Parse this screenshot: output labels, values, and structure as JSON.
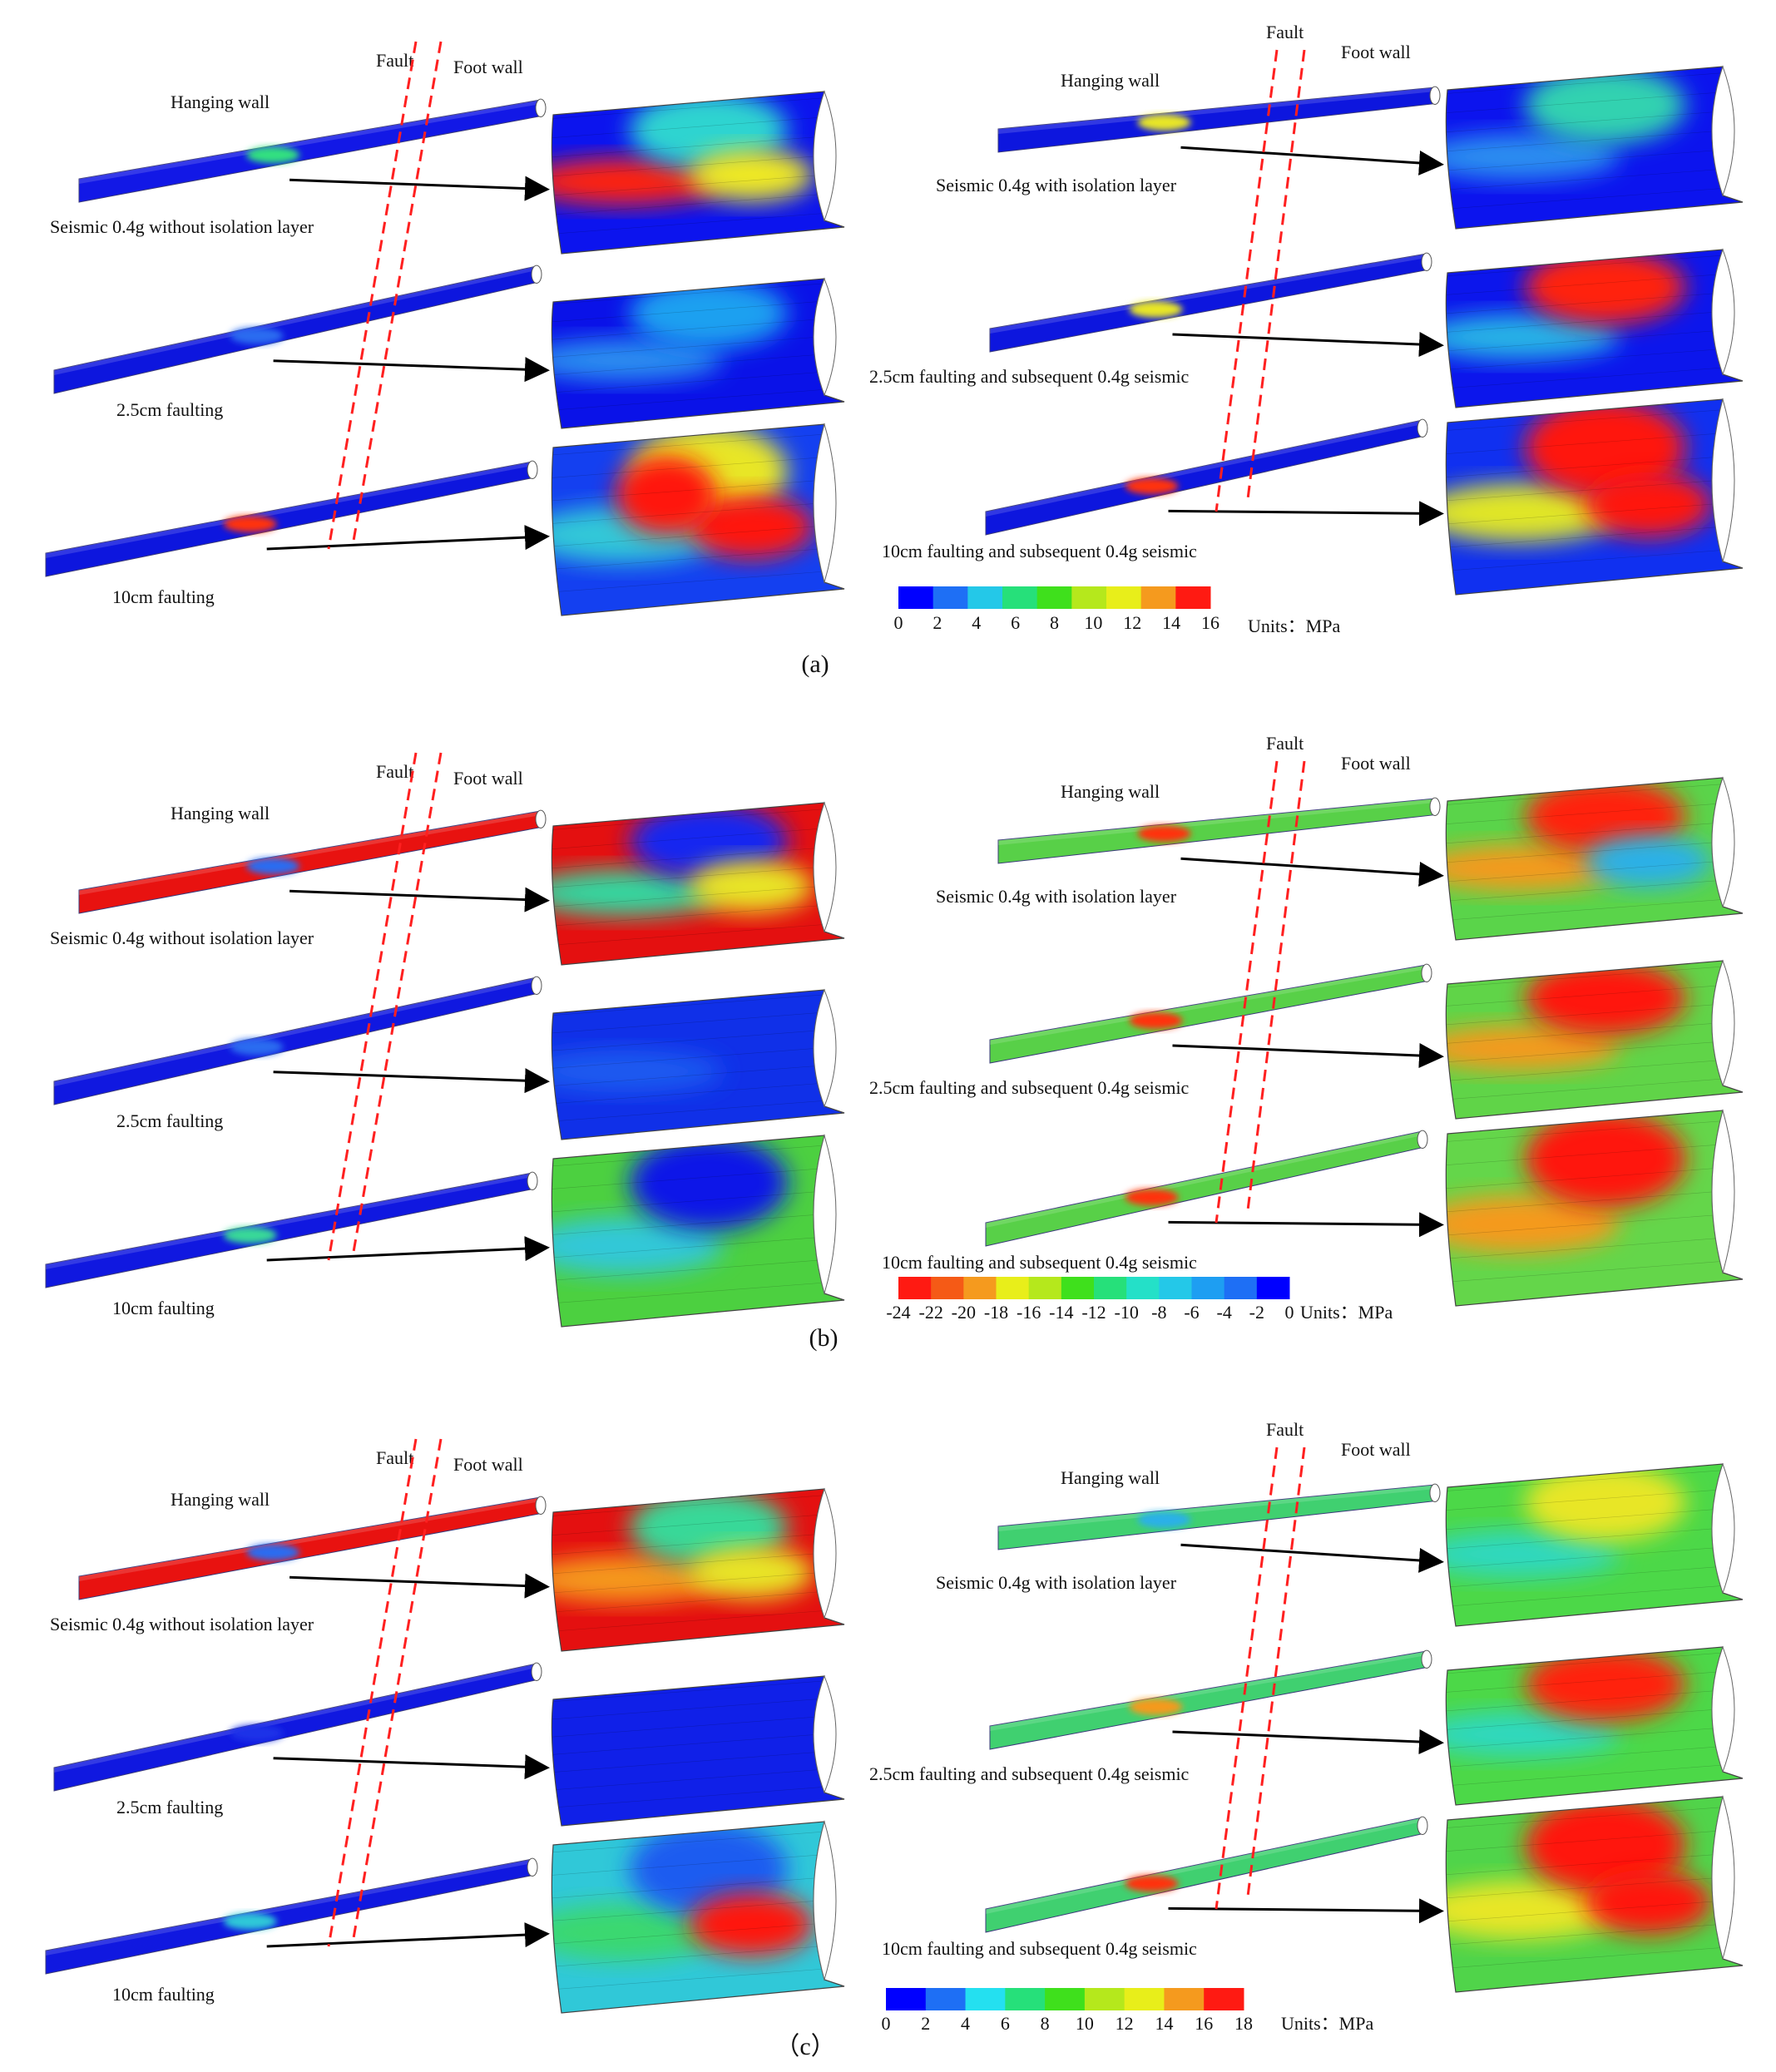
{
  "figure": {
    "panels": [
      {
        "id": "a",
        "caption": "(a)",
        "units": "Units：MPa",
        "colorbar": {
          "colors": [
            "#0000ff",
            "#1e6ff5",
            "#24c8e8",
            "#26e07a",
            "#3fe01c",
            "#b5e81c",
            "#e8ee1a",
            "#f59a1e",
            "#ff1a12"
          ],
          "ticks": [
            "0",
            "2",
            "4",
            "6",
            "8",
            "10",
            "12",
            "14",
            "16"
          ]
        },
        "left": {
          "hanging_wall": "Hanging wall",
          "fault": "Fault",
          "foot_wall": "Foot wall",
          "cases": [
            {
              "label": "Seismic 0.4g without isolation layer",
              "tube": "#1218e6",
              "tube_hot": "#30e080",
              "zoom_base": "#0c14ee",
              "blobs": [
                {
                  "c": "#ff2010"
                },
                {
                  "c": "#2ed4d0"
                },
                {
                  "c": "#f0ea20"
                }
              ]
            },
            {
              "label": "2.5cm faulting",
              "tube": "#0d16de",
              "tube_hot": "#2a6cf0",
              "zoom_base": "#0a12e8",
              "blobs": [
                {
                  "c": "#2a8ef0"
                },
                {
                  "c": "#1aa0f0"
                }
              ]
            },
            {
              "label": "10cm faulting",
              "tube": "#0d16de",
              "tube_hot": "#ff3010",
              "zoom_base": "#1440f0",
              "blobs": [
                {
                  "c": "#30c8d8"
                },
                {
                  "c": "#e8e628"
                },
                {
                  "c": "#ff1810"
                },
                {
                  "c": "#ff1810"
                }
              ]
            }
          ]
        },
        "right": {
          "hanging_wall": "Hanging wall",
          "fault": "Fault",
          "foot_wall": "Foot wall",
          "cases": [
            {
              "label": "Seismic 0.4g with isolation layer",
              "tube": "#0d16de",
              "tube_hot": "#e8e628",
              "zoom_base": "#0c14ee",
              "blobs": [
                {
                  "c": "#2a8ef0"
                },
                {
                  "c": "#30d2b0"
                }
              ]
            },
            {
              "label": "2.5cm faulting and subsequent 0.4g seismic",
              "tube": "#0d16de",
              "tube_hot": "#e8e628",
              "zoom_base": "#0c16ec",
              "blobs": [
                {
                  "c": "#28b4e6"
                },
                {
                  "c": "#ff2010"
                }
              ]
            },
            {
              "label": "10cm faulting and subsequent 0.4g seismic",
              "tube": "#0d16de",
              "tube_hot": "#ff3010",
              "zoom_base": "#1030f0",
              "blobs": [
                {
                  "c": "#e0e628"
                },
                {
                  "c": "#ff1810"
                },
                {
                  "c": "#ff1810"
                }
              ]
            }
          ]
        }
      },
      {
        "id": "b",
        "caption": "(b)",
        "units": "Units：MPa",
        "colorbar": {
          "colors": [
            "#ff1a12",
            "#f55a16",
            "#f59a1e",
            "#e8ee1a",
            "#b5e81c",
            "#3fe01c",
            "#26e07a",
            "#24e0c8",
            "#24c8e8",
            "#1e9ef2",
            "#1e6ff5",
            "#0000ff"
          ],
          "ticks": [
            "-24",
            "-22",
            "-20",
            "-18",
            "-16",
            "-14",
            "-12",
            "-10",
            "-8",
            "-6",
            "-4",
            "-2",
            "0"
          ]
        },
        "left": {
          "hanging_wall": "Hanging wall",
          "fault": "Fault",
          "foot_wall": "Foot wall",
          "cases": [
            {
              "label": "Seismic 0.4g without isolation layer",
              "tube": "#e81210",
              "tube_hot": "#2a6cf0",
              "zoom_base": "#e41010",
              "blobs": [
                {
                  "c": "#30d8a0"
                },
                {
                  "c": "#1428f0"
                },
                {
                  "c": "#e8e628"
                }
              ]
            },
            {
              "label": "2.5cm faulting",
              "tube": "#1018e0",
              "tube_hot": "#2a6cf0",
              "zoom_base": "#1030e8",
              "blobs": [
                {
                  "c": "#1a5cf0"
                }
              ]
            },
            {
              "label": "10cm faulting",
              "tube": "#1018e0",
              "tube_hot": "#38d898",
              "zoom_base": "#4cd040",
              "blobs": [
                {
                  "c": "#30c8d8"
                },
                {
                  "c": "#0d18e8"
                }
              ]
            }
          ]
        },
        "right": {
          "hanging_wall": "Hanging wall",
          "fault": "Fault",
          "foot_wall": "Foot wall",
          "cases": [
            {
              "label": "Seismic 0.4g with isolation layer",
              "tube": "#58d048",
              "tube_hot": "#ff3010",
              "zoom_base": "#5ad44a",
              "blobs": [
                {
                  "c": "#f59a1e"
                },
                {
                  "c": "#ff2010"
                },
                {
                  "c": "#2ab0e8"
                }
              ]
            },
            {
              "label": "2.5cm faulting and subsequent 0.4g seismic",
              "tube": "#58d048",
              "tube_hot": "#ff3010",
              "zoom_base": "#60d448",
              "blobs": [
                {
                  "c": "#f59a1e"
                },
                {
                  "c": "#ff1810"
                }
              ]
            },
            {
              "label": "10cm faulting and subsequent 0.4g seismic",
              "tube": "#58d048",
              "tube_hot": "#ff3010",
              "zoom_base": "#64d64a",
              "blobs": [
                {
                  "c": "#f59a1e"
                },
                {
                  "c": "#ff1810"
                }
              ]
            }
          ]
        }
      },
      {
        "id": "c",
        "caption": "（c）",
        "units": "Units：MPa",
        "colorbar": {
          "colors": [
            "#0000ff",
            "#1e6ff5",
            "#24e0f0",
            "#26e07a",
            "#3fe01c",
            "#b5e81c",
            "#e8ee1a",
            "#f59a1e",
            "#ff1a12"
          ],
          "ticks": [
            "0",
            "2",
            "4",
            "6",
            "8",
            "10",
            "12",
            "14",
            "16",
            "18"
          ]
        },
        "left": {
          "hanging_wall": "Hanging wall",
          "fault": "Fault",
          "foot_wall": "Foot wall",
          "cases": [
            {
              "label": "Seismic 0.4g without isolation layer",
              "tube": "#e81210",
              "tube_hot": "#2a6cf0",
              "zoom_base": "#e41010",
              "blobs": [
                {
                  "c": "#f59a1e"
                },
                {
                  "c": "#38d898"
                },
                {
                  "c": "#e8e628"
                }
              ]
            },
            {
              "label": "2.5cm faulting",
              "tube": "#1018e0",
              "tube_hot": "#1a30e8",
              "zoom_base": "#1020e8",
              "blobs": []
            },
            {
              "label": "10cm faulting",
              "tube": "#1018e0",
              "tube_hot": "#2ec8d8",
              "zoom_base": "#30c8d8",
              "blobs": [
                {
                  "c": "#3ad870"
                },
                {
                  "c": "#1a5cf0"
                },
                {
                  "c": "#ff1810"
                }
              ]
            }
          ]
        },
        "right": {
          "hanging_wall": "Hanging wall",
          "fault": "Fault",
          "foot_wall": "Foot wall",
          "cases": [
            {
              "label": "Seismic 0.4g with isolation layer",
              "tube": "#40d070",
              "tube_hot": "#2ab0e8",
              "zoom_base": "#4cd848",
              "blobs": [
                {
                  "c": "#2ed8c0"
                },
                {
                  "c": "#e8e628"
                }
              ]
            },
            {
              "label": "2.5cm faulting and subsequent 0.4g seismic",
              "tube": "#40d070",
              "tube_hot": "#f59a1e",
              "zoom_base": "#4cd848",
              "blobs": [
                {
                  "c": "#2ed8c0"
                },
                {
                  "c": "#ff2010"
                }
              ]
            },
            {
              "label": "10cm faulting and subsequent 0.4g seismic",
              "tube": "#40d070",
              "tube_hot": "#ff3010",
              "zoom_base": "#50d44a",
              "blobs": [
                {
                  "c": "#e8e628"
                },
                {
                  "c": "#ff1810"
                },
                {
                  "c": "#ff1810"
                }
              ]
            }
          ]
        }
      }
    ]
  }
}
